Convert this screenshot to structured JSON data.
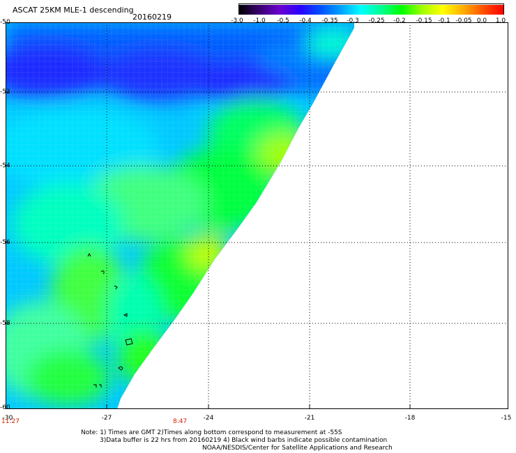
{
  "header": {
    "title": "ASCAT 25KM MLE-1 descending",
    "date": "20160219"
  },
  "colorscale": {
    "colors": [
      "#000000",
      "#3a0070",
      "#6a00d0",
      "#2a00ff",
      "#0050ff",
      "#00a0ff",
      "#00ffff",
      "#00ff90",
      "#00ff00",
      "#a0ff00",
      "#ffff00",
      "#ffb000",
      "#ff5000",
      "#ff0000"
    ],
    "tick_labels": [
      "-3.0",
      "-1.0",
      "-0.5",
      "-0.4",
      "-0.35",
      "-0.3",
      "-0.25",
      "-0.2",
      "-0.15",
      "-0.1",
      "-0.05",
      "0.0",
      "1.0"
    ]
  },
  "axes": {
    "y_ticks": [
      "-50",
      "-52",
      "-54",
      "-56",
      "-58",
      "-60"
    ],
    "x_ticks": [
      "-30",
      "-27",
      "-24",
      "-21",
      "-18",
      "-15"
    ]
  },
  "times": [
    "11:27",
    "8:47"
  ],
  "notes": [
    "Note: 1) Times are GMT 2)Times along bottom correspond to measurement at -55S",
    "3)Data buffer is 22 hrs from 20160219 4) Black wind barbs indicate possible contamination",
    "NOAA/NESDIS/Center for Satellite Applications and Research"
  ]
}
